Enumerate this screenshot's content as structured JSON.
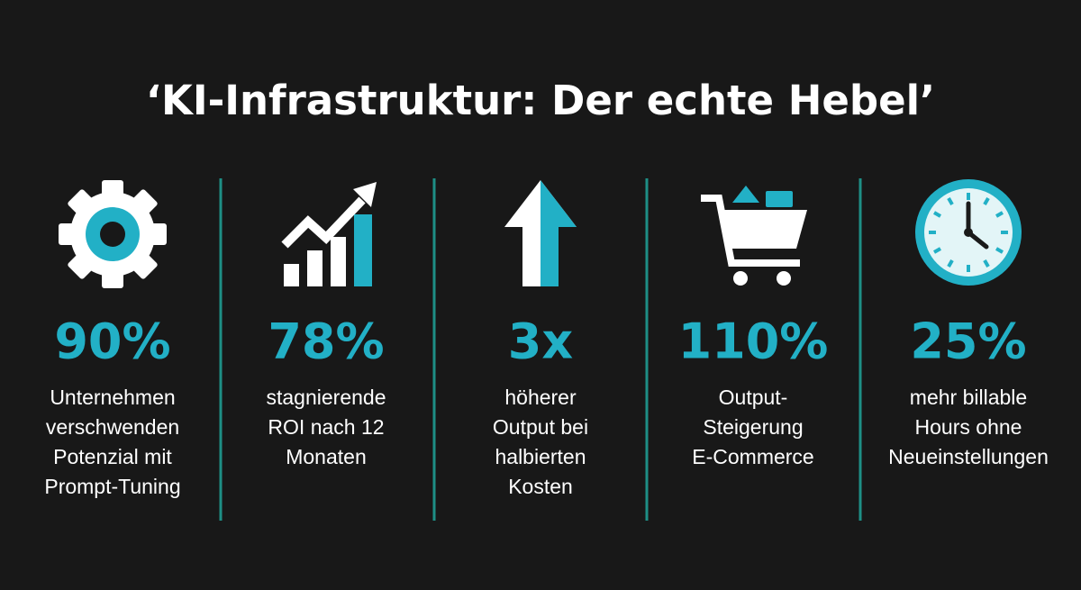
{
  "title": "‘KI-Infrastruktur: Der echte Hebel’",
  "stats": [
    {
      "value": "90%",
      "lines": [
        "Unternehmen",
        "verschwenden",
        "Potenzial mit",
        "Prompt-Tuning"
      ]
    },
    {
      "value": "78%",
      "lines": [
        "stagnierende",
        "ROI nach 12",
        "Monaten"
      ]
    },
    {
      "value": "3x",
      "lines": [
        "höherer",
        "Output bei",
        "halbierten",
        "Kosten"
      ]
    },
    {
      "value": "110%",
      "lines": [
        "Output-",
        "Steigerung",
        "E-Commerce"
      ]
    },
    {
      "value": "25%",
      "lines": [
        "mehr billable",
        "Hours ohne",
        "Neueinstellungen"
      ]
    }
  ]
}
